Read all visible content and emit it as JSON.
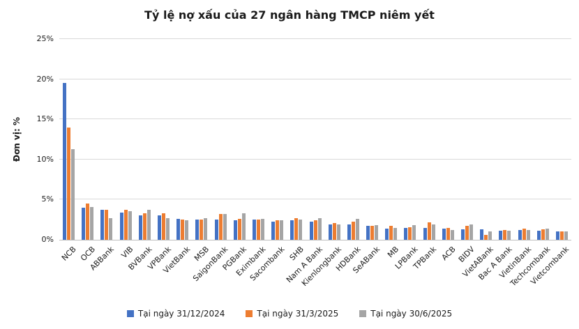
{
  "chart_data": {
    "type": "bar",
    "title": "Tỷ lệ nợ xấu của 27 ngân hàng TMCP niêm yết",
    "ylabel": "Đơn vị: %",
    "xlabel": "",
    "ylim": [
      0,
      25
    ],
    "ytick_step": 5,
    "ytick_labels": [
      "0%",
      "5%",
      "10%",
      "15%",
      "20%",
      "25%"
    ],
    "grid": "horizontal",
    "legend_position": "bottom",
    "categories": [
      "NCB",
      "OCB",
      "ABBank",
      "VIB",
      "BVBank",
      "VPBank",
      "VietBank",
      "MSB",
      "SaigonBank",
      "PGBank",
      "Eximbank",
      "Sacombank",
      "SHB",
      "Nam A Bank",
      "Kienlongbank",
      "HDBank",
      "SeABank",
      "MB",
      "LPBank",
      "TPBank",
      "ACB",
      "BIDV",
      "VietABank",
      "Bac A Bank",
      "VietinBank",
      "Techcombank",
      "Vietcombank"
    ],
    "series": [
      {
        "name": "Tại ngày 31/12/2024",
        "color": "#4472C4",
        "values": [
          19.5,
          4.0,
          3.7,
          3.4,
          3.0,
          3.0,
          2.6,
          2.5,
          2.5,
          2.4,
          2.5,
          2.3,
          2.4,
          2.3,
          1.9,
          1.9,
          1.7,
          1.4,
          1.5,
          1.5,
          1.4,
          1.3,
          1.3,
          1.1,
          1.2,
          1.1,
          1.0
        ]
      },
      {
        "name": "Tại ngày 31/3/2025",
        "color": "#ED7D31",
        "values": [
          14.0,
          4.5,
          3.7,
          3.7,
          3.3,
          3.3,
          2.5,
          2.5,
          3.2,
          2.6,
          2.5,
          2.4,
          2.7,
          2.4,
          2.1,
          2.3,
          1.7,
          1.7,
          1.6,
          2.2,
          1.5,
          1.7,
          0.6,
          1.2,
          1.4,
          1.3,
          1.0
        ]
      },
      {
        "name": "Tại ngày 30/6/2025",
        "color": "#A5A5A5",
        "values": [
          11.3,
          4.1,
          2.7,
          3.6,
          3.7,
          2.7,
          2.4,
          2.7,
          3.2,
          3.3,
          2.6,
          2.4,
          2.5,
          2.7,
          1.9,
          2.6,
          1.8,
          1.5,
          1.8,
          1.9,
          1.2,
          1.9,
          1.0,
          1.1,
          1.2,
          1.4,
          1.0
        ]
      }
    ],
    "colors": {
      "axis_line": "#BFBFBF",
      "gridline": "#D9D9D9",
      "text": "#1A1A1A"
    }
  }
}
